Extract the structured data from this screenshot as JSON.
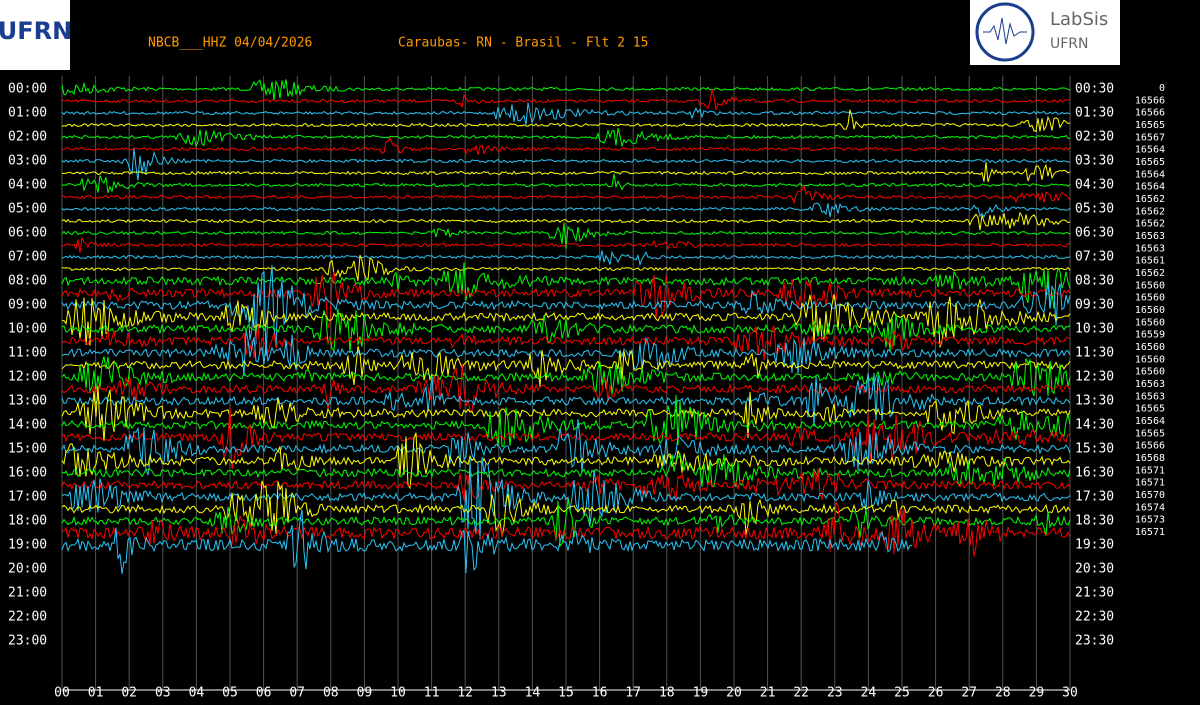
{
  "header": {
    "title": "NBCB___HHZ 04/04/2026",
    "location": "Caraubas- RN - Brasil - Flt 2 15"
  },
  "logos": {
    "left": "UFRN",
    "right_name": "LabSis",
    "right_sub": "UFRN"
  },
  "left_labels": [
    "00:00",
    "01:00",
    "02:00",
    "03:00",
    "04:00",
    "05:00",
    "06:00",
    "07:00",
    "08:00",
    "09:00",
    "10:00",
    "11:00",
    "12:00",
    "13:00",
    "14:00",
    "15:00",
    "16:00",
    "17:00",
    "18:00",
    "19:00",
    "20:00",
    "21:00",
    "22:00",
    "23:00"
  ],
  "right_labels": [
    "00:30",
    "01:30",
    "02:30",
    "03:30",
    "04:30",
    "05:30",
    "06:30",
    "07:30",
    "08:30",
    "09:30",
    "10:30",
    "11:30",
    "12:30",
    "13:30",
    "14:30",
    "15:30",
    "16:30",
    "17:30",
    "18:30",
    "19:30",
    "20:30",
    "21:30",
    "22:30",
    "23:30"
  ],
  "x_labels": [
    "00",
    "01",
    "02",
    "03",
    "04",
    "05",
    "06",
    "07",
    "08",
    "09",
    "10",
    "11",
    "12",
    "13",
    "14",
    "15",
    "16",
    "17",
    "18",
    "19",
    "20",
    "21",
    "22",
    "23",
    "24",
    "25",
    "26",
    "27",
    "28",
    "29",
    "30"
  ],
  "counts": [
    0,
    16566,
    16566,
    16565,
    16567,
    16564,
    16565,
    16564,
    16564,
    16562,
    16562,
    16562,
    16563,
    16563,
    16561,
    16562,
    16560,
    16560,
    16560,
    16560,
    16559,
    16560,
    16560,
    16560,
    16563,
    16563,
    16565,
    16564,
    16565,
    16566,
    16568,
    16571,
    16571,
    16570,
    16574,
    16573,
    16571
  ]
}
